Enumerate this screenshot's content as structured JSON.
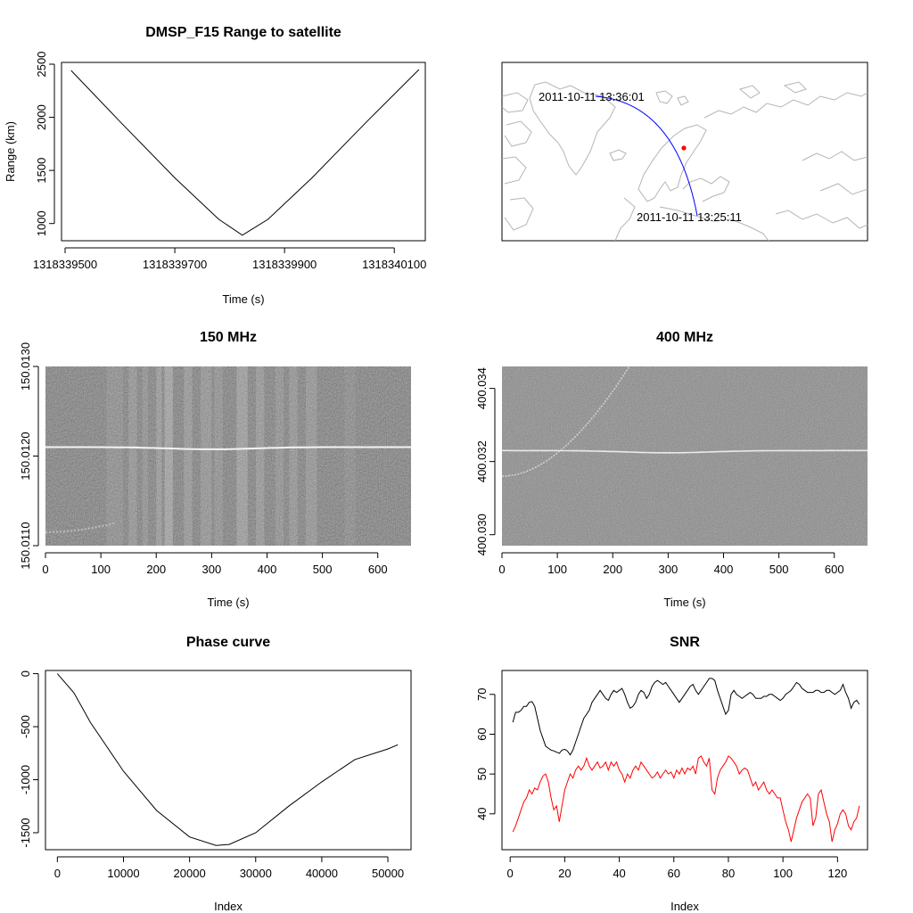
{
  "chart_data": [
    {
      "type": "line",
      "title": "DMSP_F15 Range to satellite",
      "xlabel": "Time (s)",
      "ylabel": "Range (km)",
      "xlim": [
        1318339500,
        1318340150
      ],
      "ylim": [
        880,
        2500
      ],
      "x_ticks": [
        "1318339500",
        "1318339700",
        "1318339900",
        "1318340100"
      ],
      "y_ticks": [
        "1000",
        "1500",
        "2000",
        "2500"
      ],
      "series": [
        {
          "color": "#000000",
          "x": [
            1318339511,
            1318339600,
            1318339700,
            1318339780,
            1318339823,
            1318339870,
            1318339950,
            1318340050,
            1318340145
          ],
          "y": [
            2440,
            1960,
            1430,
            1040,
            890,
            1040,
            1430,
            1960,
            2450
          ]
        }
      ]
    },
    {
      "type": "map",
      "annotations": {
        "end_time": "2011-10-11 13:36:01",
        "start_time": "2011-10-11 13:25:11"
      },
      "track_color": "#0000ff",
      "site_color": "#ff0000",
      "coastline_color": "#b4b4b4"
    },
    {
      "type": "heatmap",
      "title": "150 MHz",
      "xlabel": "Time (s)",
      "x_ticks": [
        "0",
        "100",
        "200",
        "300",
        "400",
        "500",
        "600"
      ],
      "y_ticks": [
        "150.0110",
        "150.0120",
        "150.0130"
      ],
      "xlim": [
        0,
        660
      ],
      "ylim": [
        150.011,
        150.013
      ],
      "signal_freq": 150.0121,
      "secondary_trace": {
        "start_freq": 150.01115,
        "end_freq": 150.01125,
        "end_time": 125
      }
    },
    {
      "type": "heatmap",
      "title": "400 MHz",
      "xlabel": "Time (s)",
      "x_ticks": [
        "0",
        "100",
        "200",
        "300",
        "400",
        "500",
        "600"
      ],
      "y_ticks": [
        "400.030",
        "400.032",
        "400.034"
      ],
      "xlim": [
        0,
        660
      ],
      "ylim": [
        400.0297,
        400.0346
      ],
      "signal_freq": 400.0323,
      "secondary_trace": {
        "start_freq": 400.0316,
        "end_freq": 400.0346,
        "end_time": 230
      }
    },
    {
      "type": "line",
      "title": "Phase curve",
      "xlabel": "Index",
      "x_ticks": [
        "0",
        "10000",
        "20000",
        "30000",
        "40000",
        "50000"
      ],
      "y_ticks": [
        "0",
        "-500",
        "-1000",
        "-1500"
      ],
      "xlim": [
        -1800,
        53500
      ],
      "ylim": [
        -1660,
        30
      ],
      "series": [
        {
          "color": "#000000",
          "x": [
            0,
            2500,
            5000,
            10000,
            15000,
            20000,
            24000,
            26000,
            30000,
            35000,
            40000,
            45000,
            50000,
            51500
          ],
          "y": [
            0,
            -180,
            -460,
            -920,
            -1290,
            -1540,
            -1620,
            -1610,
            -1500,
            -1250,
            -1020,
            -810,
            -710,
            -670
          ]
        }
      ]
    },
    {
      "type": "line",
      "title": "SNR",
      "xlabel": "Index",
      "x_ticks": [
        "0",
        "20",
        "40",
        "60",
        "80",
        "100",
        "120"
      ],
      "y_ticks": [
        "40",
        "50",
        "60",
        "70"
      ],
      "xlim": [
        -3,
        131
      ],
      "ylim": [
        31,
        76
      ],
      "series": [
        {
          "color": "#000000",
          "x": [
            1,
            2,
            3,
            4,
            5,
            6,
            7,
            8,
            9,
            10,
            11,
            12,
            13,
            14,
            15,
            16,
            17,
            18,
            19,
            20,
            21,
            22,
            23,
            24,
            25,
            26,
            27,
            28,
            29,
            30,
            31,
            32,
            33,
            34,
            35,
            36,
            37,
            38,
            39,
            40,
            41,
            42,
            43,
            44,
            45,
            46,
            47,
            48,
            49,
            50,
            51,
            52,
            53,
            54,
            55,
            56,
            57,
            58,
            59,
            60,
            61,
            62,
            63,
            64,
            65,
            66,
            67,
            68,
            69,
            70,
            71,
            72,
            73,
            74,
            75,
            76,
            77,
            78,
            79,
            80,
            81,
            82,
            83,
            84,
            85,
            86,
            87,
            88,
            89,
            90,
            91,
            92,
            93,
            94,
            95,
            96,
            97,
            98,
            99,
            100,
            101,
            102,
            103,
            104,
            105,
            106,
            107,
            108,
            109,
            110,
            111,
            112,
            113,
            114,
            115,
            116,
            117,
            118,
            119,
            120,
            121,
            122,
            123,
            124,
            125,
            126,
            127,
            128
          ],
          "y": [
            63,
            65.5,
            65.5,
            66,
            67,
            67,
            68,
            68.2,
            67,
            64,
            61,
            59,
            57,
            56.5,
            56,
            55.8,
            55.5,
            55.2,
            56,
            56.2,
            55.8,
            54.8,
            56,
            58,
            60,
            62,
            64,
            65,
            66,
            68,
            69,
            70,
            71,
            70,
            69,
            68.5,
            70,
            71,
            70.5,
            71,
            71.5,
            70,
            68,
            66.5,
            67,
            68,
            70,
            71,
            70.5,
            69,
            70,
            72,
            73,
            73.5,
            73,
            72.5,
            73,
            72,
            71,
            70,
            69,
            68,
            69,
            70,
            71,
            72,
            72.5,
            71,
            70,
            71,
            72,
            73,
            74,
            74,
            73.5,
            71,
            69,
            67,
            65,
            66,
            70,
            71,
            70,
            69.5,
            69,
            69.5,
            70,
            70.5,
            70,
            69,
            69,
            69,
            69.5,
            69.5,
            70,
            70,
            69.5,
            69,
            68.5,
            69,
            70,
            70.5,
            71,
            72,
            73,
            72.5,
            71.5,
            71,
            70.5,
            70.5,
            70.5,
            71,
            71,
            70.5,
            70.5,
            71,
            71,
            70.5,
            70,
            70.5,
            71,
            72.5,
            70.5,
            69,
            66.5,
            68,
            68.5,
            67.5
          ],
          "name": ""
        },
        {
          "color": "#ff0000",
          "x": [
            1,
            2,
            3,
            4,
            5,
            6,
            7,
            8,
            9,
            10,
            11,
            12,
            13,
            14,
            15,
            16,
            17,
            18,
            19,
            20,
            21,
            22,
            23,
            24,
            25,
            26,
            27,
            28,
            29,
            30,
            31,
            32,
            33,
            34,
            35,
            36,
            37,
            38,
            39,
            40,
            41,
            42,
            43,
            44,
            45,
            46,
            47,
            48,
            49,
            50,
            51,
            52,
            53,
            54,
            55,
            56,
            57,
            58,
            59,
            60,
            61,
            62,
            63,
            64,
            65,
            66,
            67,
            68,
            69,
            70,
            71,
            72,
            73,
            74,
            75,
            76,
            77,
            78,
            79,
            80,
            81,
            82,
            83,
            84,
            85,
            86,
            87,
            88,
            89,
            90,
            91,
            92,
            93,
            94,
            95,
            96,
            97,
            98,
            99,
            100,
            101,
            102,
            103,
            104,
            105,
            106,
            107,
            108,
            109,
            110,
            111,
            112,
            113,
            114,
            115,
            116,
            117,
            118,
            119,
            120,
            121,
            122,
            123,
            124,
            125,
            126,
            127,
            128
          ],
          "y": [
            35.5,
            37,
            39,
            41,
            43,
            44,
            46,
            45,
            46.5,
            46,
            48,
            49.5,
            50,
            48,
            44,
            41,
            42,
            38,
            42,
            46,
            48,
            50,
            49,
            51,
            52,
            51,
            52,
            54,
            52,
            51,
            52,
            53,
            51.5,
            52,
            53,
            51,
            53,
            52,
            53,
            51,
            50,
            48,
            50,
            49,
            51,
            52,
            51,
            53,
            52,
            51,
            50,
            49,
            49.5,
            50.5,
            49,
            50,
            51,
            50,
            50.5,
            49,
            51,
            50,
            51.5,
            50,
            51.5,
            51,
            52,
            50,
            54,
            54.5,
            53,
            52,
            54,
            46,
            45,
            49,
            51,
            52,
            53,
            54.5,
            54,
            53,
            52,
            50,
            51,
            51.5,
            51,
            49,
            47,
            48,
            46,
            47,
            48,
            46,
            45,
            46,
            45,
            44,
            44,
            41,
            38,
            36,
            33,
            36,
            39,
            41,
            43,
            44,
            45,
            44,
            37,
            39,
            45,
            46,
            43,
            40,
            38,
            33,
            36,
            37.5,
            40,
            41,
            40,
            37,
            36,
            38,
            39,
            42
          ],
          "name": ""
        }
      ]
    }
  ]
}
